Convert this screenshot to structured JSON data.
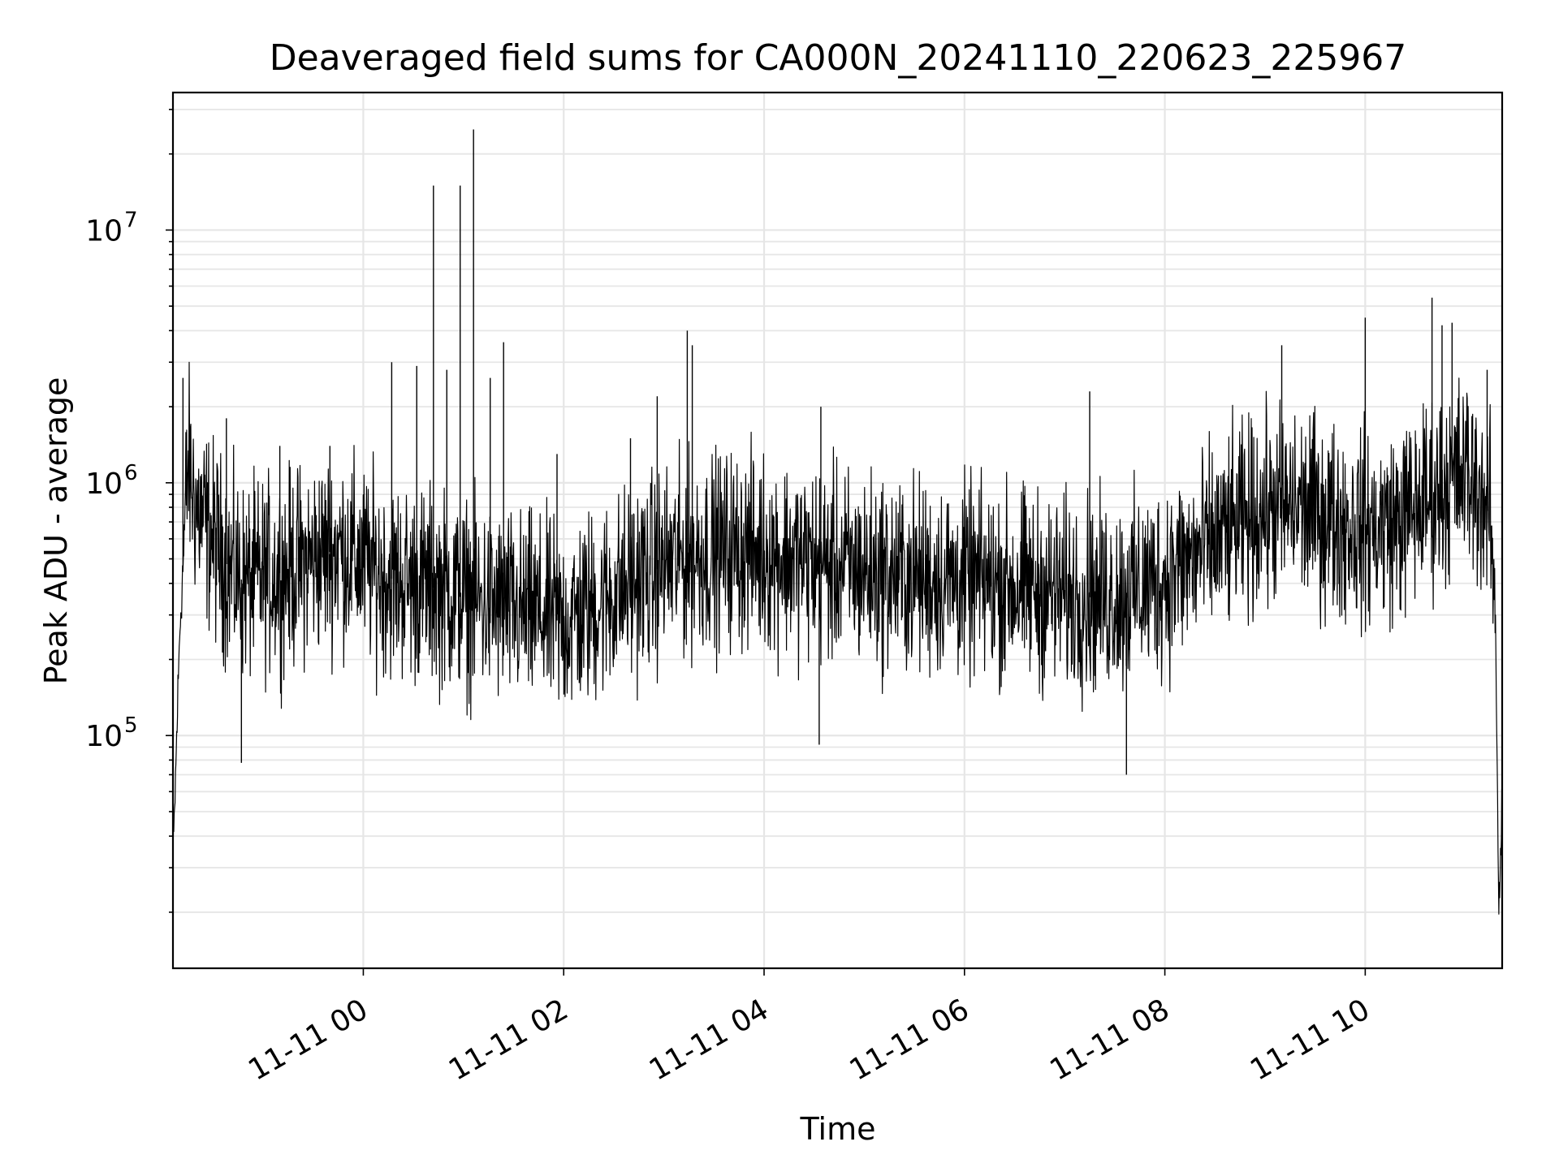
{
  "chart_data": {
    "type": "line",
    "title": "Deaveraged field sums for CA000N_20241110_220623_225967",
    "xlabel": "Time",
    "ylabel": "Peak ADU - average",
    "x_ticks": [
      "11-11 00",
      "11-11 02",
      "11-11 04",
      "11-11 06",
      "11-11 08",
      "11-11 10"
    ],
    "y_ticks": [
      {
        "base": "10",
        "exp": "5",
        "value": 100000
      },
      {
        "base": "10",
        "exp": "6",
        "value": 1000000
      },
      {
        "base": "10",
        "exp": "7",
        "value": 10000000
      }
    ],
    "y_scale": "log",
    "xlim": [
      "2024-11-10 22:06",
      "2024-11-11 11:22"
    ],
    "ylim": [
      12000,
      35000000
    ],
    "grid": true,
    "line_color": "#000000",
    "series": [
      {
        "x": [
          "2024-11-10 22:06",
          "2024-11-10 22:10",
          "2024-11-10 22:15",
          "2024-11-10 22:20",
          "2024-11-10 22:30",
          "2024-11-10 22:40",
          "2024-11-10 22:50",
          "2024-11-10 23:00",
          "2024-11-10 23:15",
          "2024-11-10 23:30",
          "2024-11-10 23:45",
          "2024-11-11 00:00",
          "2024-11-11 00:15",
          "2024-11-11 00:30",
          "2024-11-11 00:45",
          "2024-11-11 01:00",
          "2024-11-11 01:15",
          "2024-11-11 01:30",
          "2024-11-11 01:45",
          "2024-11-11 02:00",
          "2024-11-11 02:20",
          "2024-11-11 02:40",
          "2024-11-11 03:00",
          "2024-11-11 03:20",
          "2024-11-11 03:40",
          "2024-11-11 04:00",
          "2024-11-11 04:20",
          "2024-11-11 04:40",
          "2024-11-11 05:00",
          "2024-11-11 05:20",
          "2024-11-11 05:40",
          "2024-11-11 06:00",
          "2024-11-11 06:20",
          "2024-11-11 06:40",
          "2024-11-11 07:00",
          "2024-11-11 07:20",
          "2024-11-11 07:40",
          "2024-11-11 08:00",
          "2024-11-11 08:20",
          "2024-11-11 08:40",
          "2024-11-11 09:00",
          "2024-11-11 09:20",
          "2024-11-11 09:40",
          "2024-11-11 10:00",
          "2024-11-11 10:20",
          "2024-11-11 10:40",
          "2024-11-11 11:00",
          "2024-11-11 11:10",
          "2024-11-11 11:15",
          "2024-11-11 11:18",
          "2024-11-11 11:20",
          "2024-11-11 11:22"
        ],
        "y": [
          30000,
          250000,
          1200000,
          800000,
          600000,
          450000,
          400000,
          420000,
          450000,
          500000,
          550000,
          480000,
          420000,
          400000,
          380000,
          350000,
          330000,
          310000,
          300000,
          280000,
          330000,
          400000,
          470000,
          520000,
          550000,
          530000,
          500000,
          470000,
          450000,
          430000,
          420000,
          410000,
          400000,
          380000,
          360000,
          350000,
          370000,
          420000,
          520000,
          650000,
          780000,
          800000,
          720000,
          650000,
          700000,
          900000,
          1100000,
          900000,
          700000,
          300000,
          20000,
          60000
        ]
      }
    ],
    "spikes": [
      {
        "x": "2024-11-10 22:12",
        "y": 2600000
      },
      {
        "x": "2024-11-10 22:38",
        "y": 1800000
      },
      {
        "x": "2024-11-10 22:47",
        "y": 78000
      },
      {
        "x": "2024-11-10 23:10",
        "y": 1400000
      },
      {
        "x": "2024-11-10 23:40",
        "y": 1400000
      },
      {
        "x": "2024-11-11 00:17",
        "y": 3000000
      },
      {
        "x": "2024-11-11 00:32",
        "y": 2900000
      },
      {
        "x": "2024-11-11 00:42",
        "y": 15000000
      },
      {
        "x": "2024-11-11 00:50",
        "y": 2800000
      },
      {
        "x": "2024-11-11 00:58",
        "y": 15000000
      },
      {
        "x": "2024-11-11 01:06",
        "y": 25000000
      },
      {
        "x": "2024-11-11 01:16",
        "y": 2600000
      },
      {
        "x": "2024-11-11 01:24",
        "y": 3600000
      },
      {
        "x": "2024-11-11 01:56",
        "y": 1300000
      },
      {
        "x": "2024-11-11 02:40",
        "y": 1500000
      },
      {
        "x": "2024-11-11 02:56",
        "y": 2200000
      },
      {
        "x": "2024-11-11 03:14",
        "y": 4000000
      },
      {
        "x": "2024-11-11 03:17",
        "y": 3500000
      },
      {
        "x": "2024-11-11 04:34",
        "y": 2000000
      },
      {
        "x": "2024-11-11 04:33",
        "y": 92000
      },
      {
        "x": "2024-11-11 07:15",
        "y": 2300000
      },
      {
        "x": "2024-11-11 07:37",
        "y": 70000
      },
      {
        "x": "2024-11-11 09:10",
        "y": 3500000
      },
      {
        "x": "2024-11-11 10:00",
        "y": 4500000
      },
      {
        "x": "2024-11-11 10:40",
        "y": 5400000
      },
      {
        "x": "2024-11-11 10:46",
        "y": 4200000
      },
      {
        "x": "2024-11-11 10:52",
        "y": 4300000
      },
      {
        "x": "2024-11-11 11:13",
        "y": 2800000
      }
    ]
  }
}
